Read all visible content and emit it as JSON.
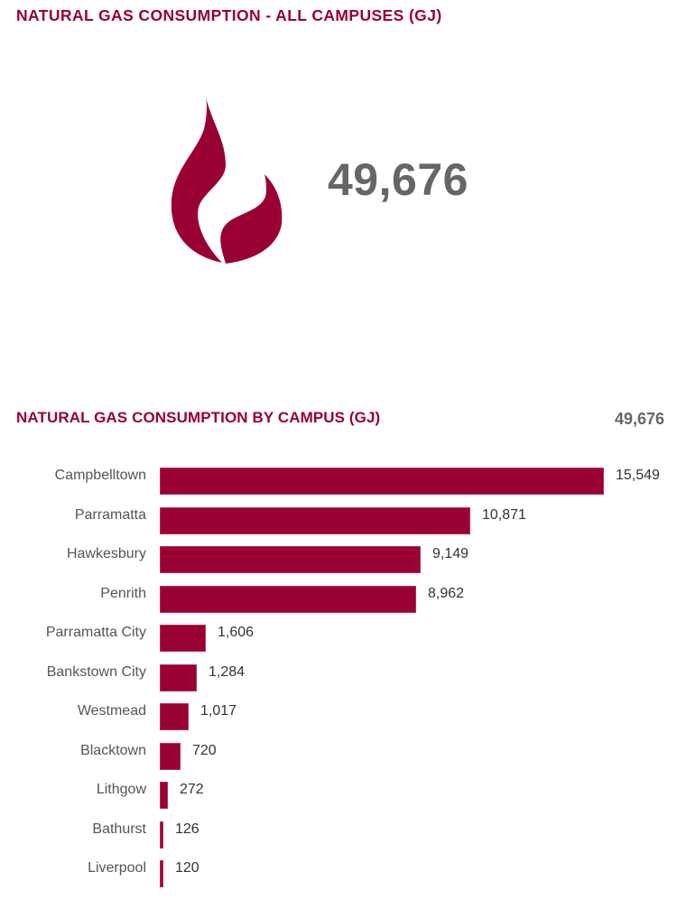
{
  "header": {
    "title": "NATURAL GAS CONSUMPTION - ALL CAMPUSES (GJ)",
    "kpi_value": "49,676",
    "icon": "flame-icon"
  },
  "section": {
    "title": "NATURAL GAS CONSUMPTION BY CAMPUS (GJ)",
    "total": "49,676"
  },
  "colors": {
    "accent": "#990033",
    "kpi": "#666666",
    "label": "#555555",
    "value": "#333333"
  },
  "chart_data": {
    "type": "bar",
    "orientation": "horizontal",
    "title": "NATURAL GAS CONSUMPTION BY CAMPUS (GJ)",
    "xlabel": "",
    "ylabel": "",
    "grid": false,
    "legend": null,
    "total": 49676,
    "categories": [
      "Campbelltown",
      "Parramatta",
      "Hawkesbury",
      "Penrith",
      "Parramatta City",
      "Bankstown City",
      "Westmead",
      "Blacktown",
      "Lithgow",
      "Bathurst",
      "Liverpool"
    ],
    "values": [
      15549,
      10871,
      9149,
      8962,
      1606,
      1284,
      1017,
      720,
      272,
      126,
      120
    ],
    "value_labels": [
      "15,549",
      "10,871",
      "9,149",
      "8,962",
      "1,606",
      "1,284",
      "1,017",
      "720",
      "272",
      "126",
      "120"
    ],
    "xlim": [
      0,
      15549
    ]
  }
}
